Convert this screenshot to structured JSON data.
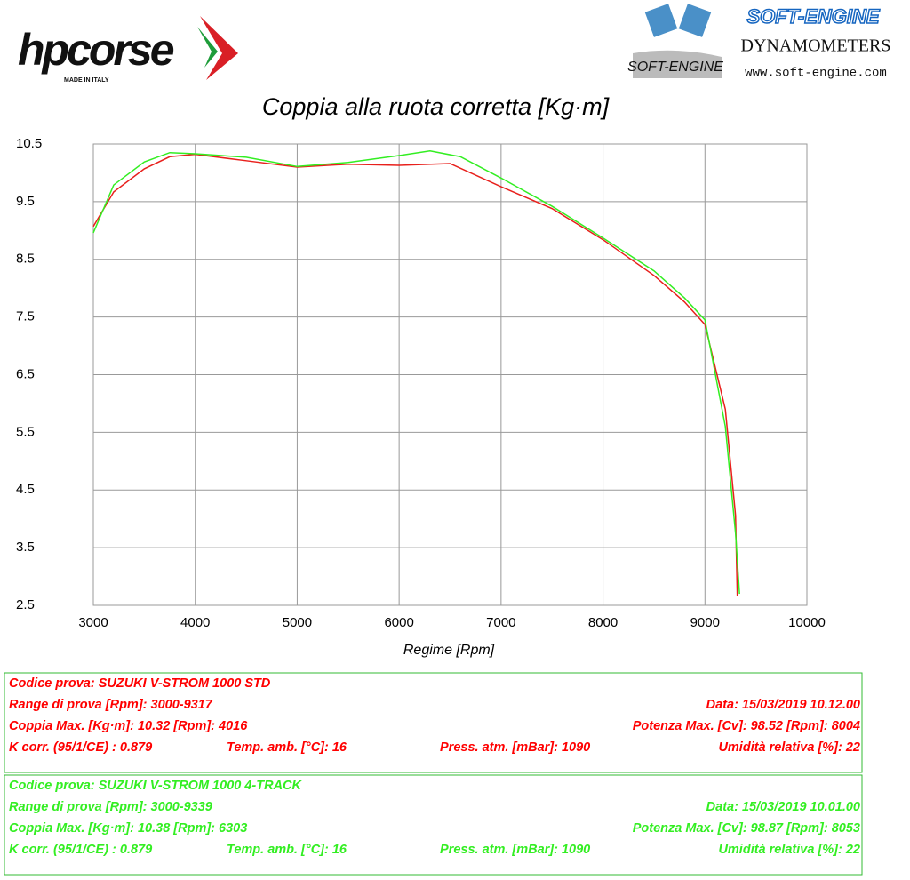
{
  "header": {
    "brand": "hpcorse",
    "brand_sub": "MADE IN ITALY",
    "maker": "SOFT-ENGINE",
    "maker_sub": "DYNAMOMETERS",
    "maker_url": "www.soft-engine.com"
  },
  "chart_data": {
    "type": "line",
    "title": "Coppia alla ruota corretta [Kg·m]",
    "x_label": "Regime [Rpm]",
    "xlim": [
      3000,
      10000
    ],
    "xticks": [
      3000,
      4000,
      5000,
      6000,
      7000,
      8000,
      9000,
      10000
    ],
    "ylim": [
      2.5,
      10.5
    ],
    "yticks": [
      2.5,
      3.5,
      4.5,
      5.5,
      6.5,
      7.5,
      8.5,
      9.5,
      10.5
    ],
    "grid": true,
    "series": [
      {
        "color": "#e8201c",
        "x": [
          3000,
          3200,
          3500,
          3750,
          4000,
          4500,
          5000,
          5500,
          6000,
          6500,
          7000,
          7500,
          8000,
          8500,
          8800,
          9000,
          9200,
          9300,
          9317
        ],
        "values": [
          9.07,
          9.67,
          10.07,
          10.28,
          10.32,
          10.21,
          10.1,
          10.15,
          10.13,
          10.16,
          9.76,
          9.38,
          8.84,
          8.22,
          7.76,
          7.37,
          5.9,
          4.06,
          2.67
        ]
      },
      {
        "color": "#33ee22",
        "x": [
          3000,
          3200,
          3500,
          3750,
          4000,
          4500,
          5000,
          5500,
          6000,
          6303,
          6600,
          7000,
          7500,
          8000,
          8500,
          8800,
          9000,
          9200,
          9300,
          9339
        ],
        "values": [
          8.96,
          9.79,
          10.19,
          10.35,
          10.33,
          10.27,
          10.11,
          10.18,
          10.3,
          10.38,
          10.28,
          9.91,
          9.42,
          8.87,
          8.3,
          7.83,
          7.45,
          5.6,
          3.75,
          2.7
        ]
      }
    ]
  },
  "info_boxes": [
    {
      "color": "#ff0000",
      "rows": [
        [
          "Codice prova: SUZUKI V-STROM 1000 STD"
        ],
        [
          "Range di prova [Rpm]: 3000-9317",
          "Data: 15/03/2019  10.12.00"
        ],
        [
          "Coppia Max. [Kg·m]: 10.32  [Rpm]: 4016",
          "Potenza Max. [Cv]: 98.52  [Rpm]: 8004"
        ],
        [
          "K corr. (95/1/CE) : 0.879",
          "Temp. amb. [°C]: 16",
          "Press. atm. [mBar]: 1090",
          "Umidità relativa [%]: 22"
        ]
      ]
    },
    {
      "color": "#33ee22",
      "rows": [
        [
          "Codice prova: SUZUKI V-STROM 1000  4-TRACK"
        ],
        [
          "Range di prova [Rpm]: 3000-9339",
          "Data: 15/03/2019  10.01.00"
        ],
        [
          "Coppia Max. [Kg·m]: 10.38  [Rpm]: 6303",
          "Potenza Max. [Cv]: 98.87  [Rpm]: 8053"
        ],
        [
          "K corr. (95/1/CE) : 0.879",
          "Temp. amb. [°C]: 16",
          "Press. atm. [mBar]: 1090",
          "Umidità relativa [%]: 22"
        ]
      ]
    }
  ]
}
